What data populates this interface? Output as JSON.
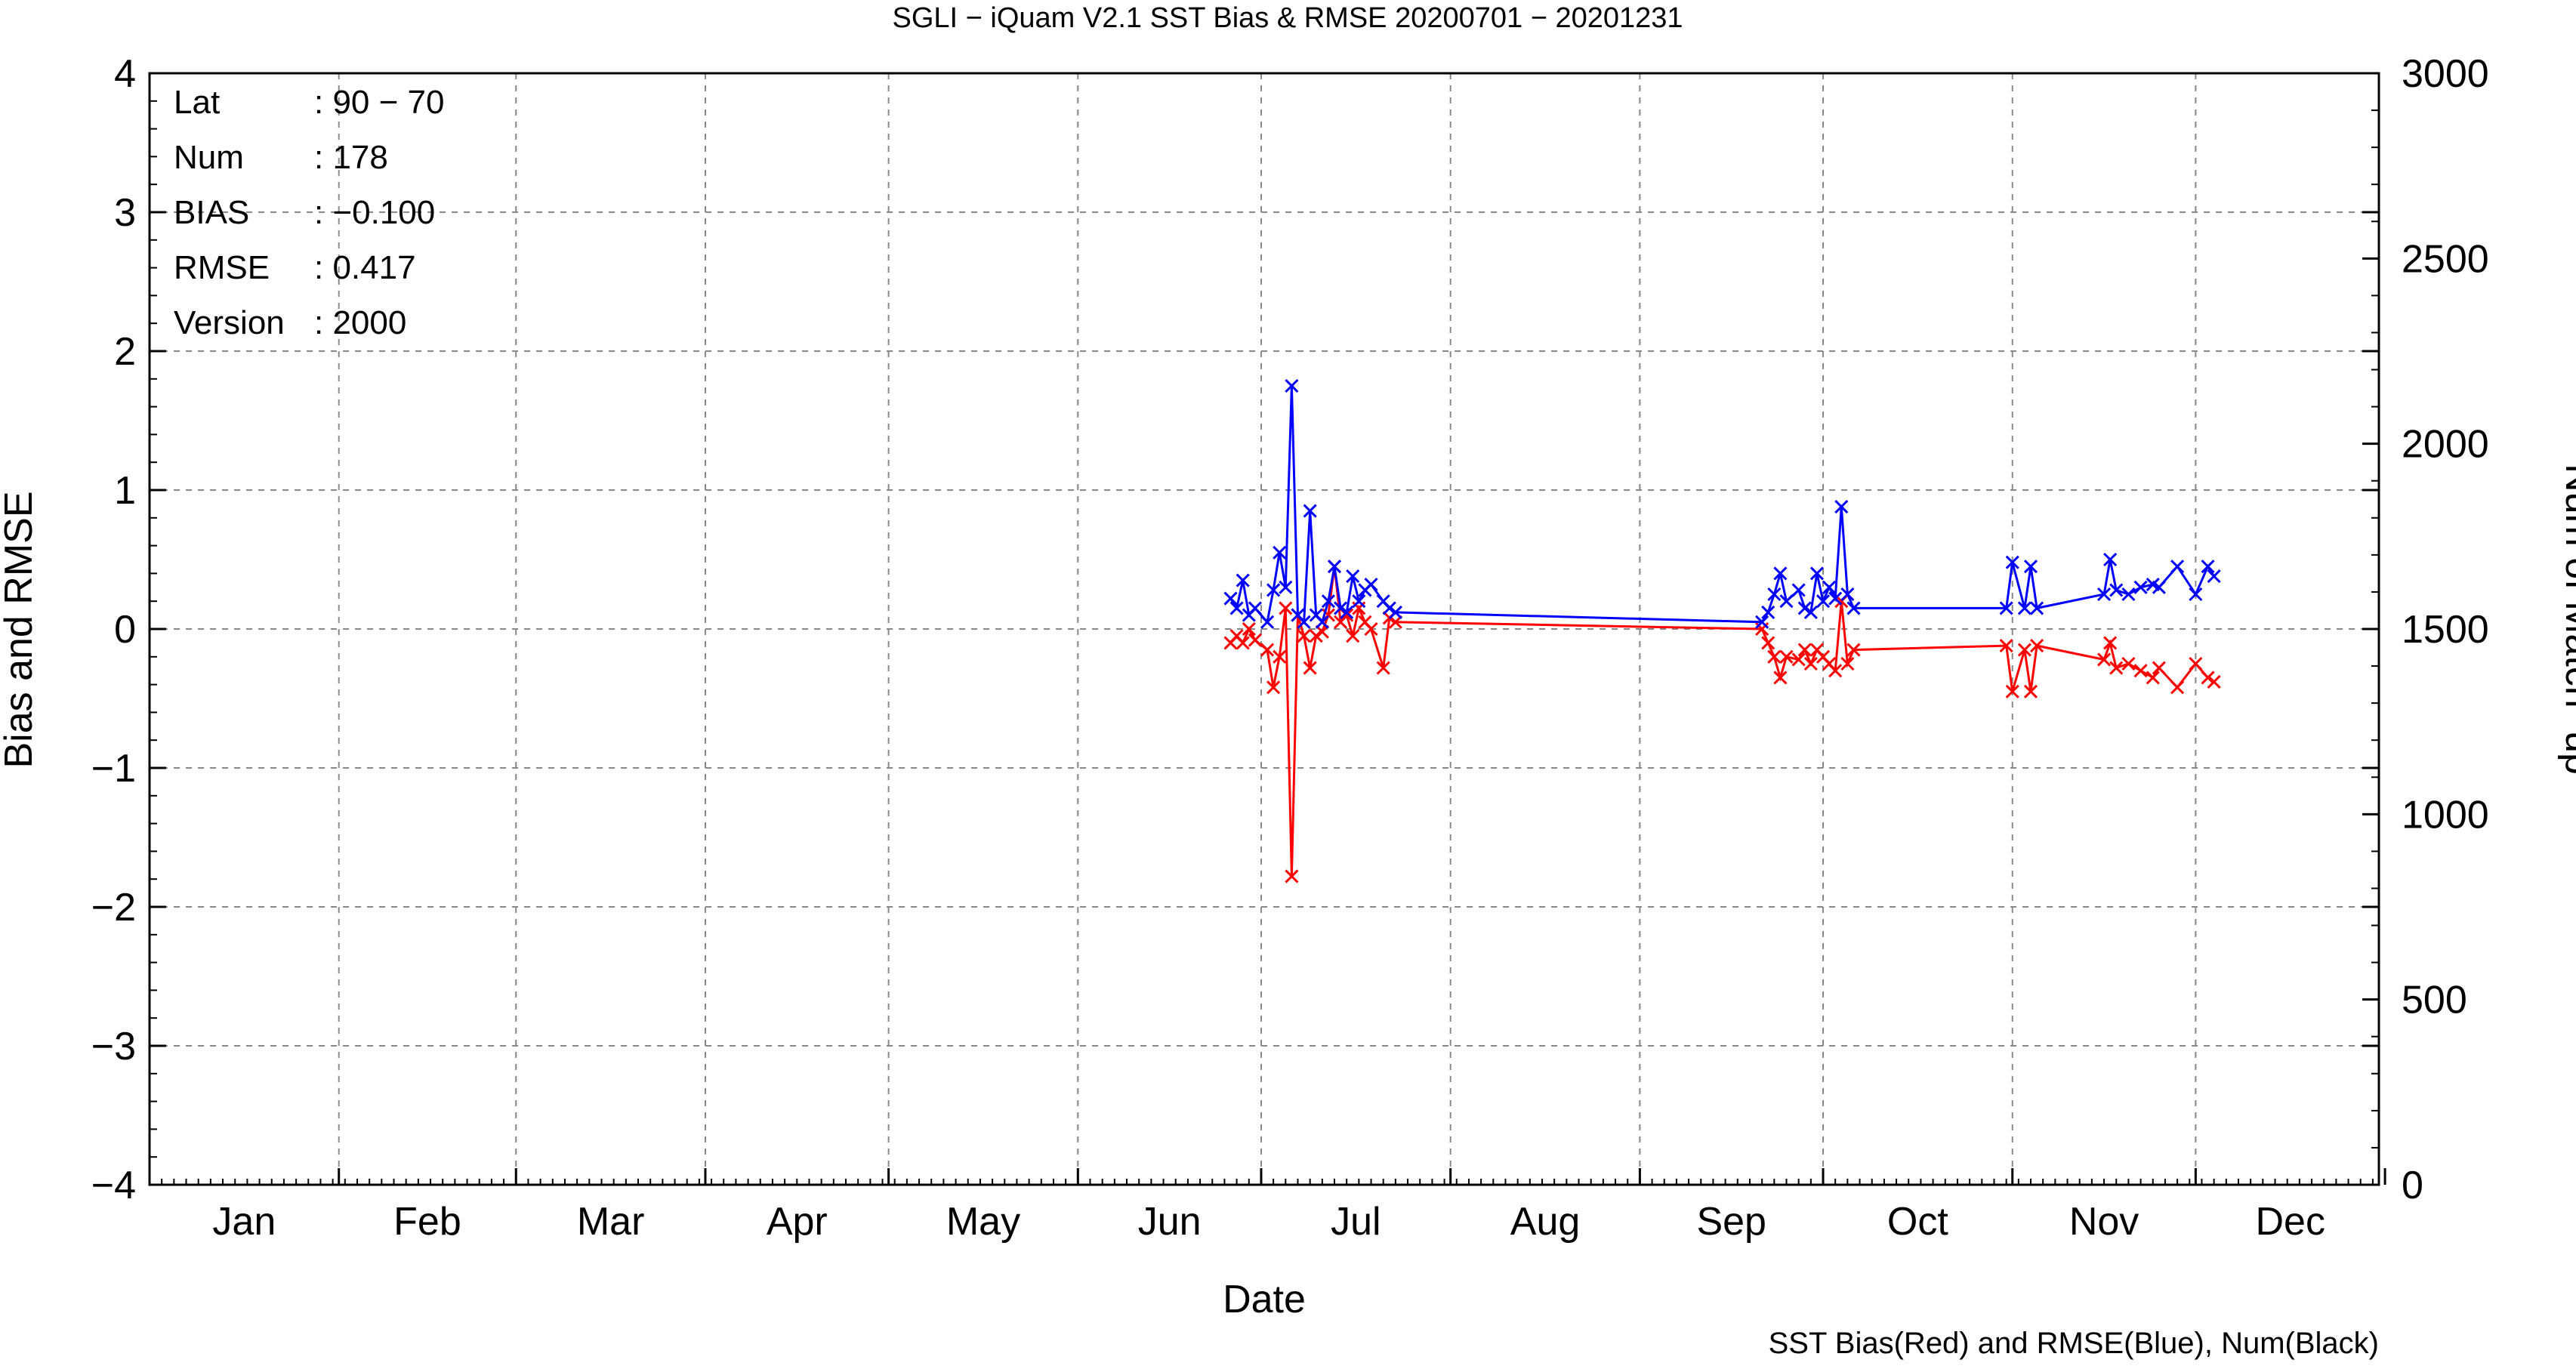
{
  "chart_data": {
    "type": "line",
    "title": "SGLI − iQuam V2.1 SST Bias & RMSE 20200701 − 20201231",
    "xlabel": "Date",
    "ylabel": "Bias and RMSE",
    "y2label": "Num of Match−up",
    "footer": "SST Bias(Red) and RMSE(Blue), Num(Black)",
    "ylim": [
      -4,
      4
    ],
    "y2lim": [
      0,
      3000
    ],
    "xlim": [
      1,
      366
    ],
    "grid": true,
    "month_labels": [
      "Jan",
      "Feb",
      "Mar",
      "Apr",
      "May",
      "Jun",
      "Jul",
      "Aug",
      "Sep",
      "Oct",
      "Nov",
      "Dec"
    ],
    "yticks": [
      "−4",
      "−3",
      "−2",
      "−1",
      "0",
      "1",
      "2",
      "3",
      "4"
    ],
    "y2ticks": [
      "0",
      "500",
      "1000",
      "1500",
      "2000",
      "2500",
      "3000"
    ],
    "info": [
      {
        "label": "Lat",
        "value": ": 90 − 70"
      },
      {
        "label": "Num",
        "value": ": 178"
      },
      {
        "label": "BIAS",
        "value": ": −0.100"
      },
      {
        "label": "RMSE",
        "value": ": 0.417"
      },
      {
        "label": "Version",
        "value": ": 2000"
      }
    ],
    "series": [
      {
        "name": "SST Bias",
        "color": "#ff0000",
        "x": [
          178,
          179,
          180,
          181,
          182,
          184,
          185,
          186,
          187,
          188,
          189,
          190,
          191,
          192,
          193,
          194,
          195,
          196,
          197,
          198,
          199,
          200,
          201,
          203,
          204,
          205,
          265,
          266,
          267,
          268,
          269,
          271,
          272,
          273,
          274,
          275,
          276,
          277,
          278,
          279,
          280,
          305,
          306,
          308,
          309,
          310,
          321,
          322,
          323,
          325,
          327,
          329,
          330,
          333,
          336,
          338,
          339
        ],
        "y": [
          -0.1,
          -0.05,
          -0.1,
          0.0,
          -0.08,
          -0.15,
          -0.42,
          -0.2,
          0.15,
          -1.78,
          0.1,
          -0.05,
          -0.28,
          -0.05,
          -0.02,
          0.1,
          0.45,
          0.05,
          0.1,
          -0.05,
          0.15,
          0.05,
          0.0,
          -0.28,
          0.08,
          0.05,
          0.0,
          -0.1,
          -0.2,
          -0.35,
          -0.2,
          -0.22,
          -0.15,
          -0.25,
          -0.15,
          -0.2,
          -0.25,
          -0.3,
          0.2,
          -0.25,
          -0.15,
          -0.12,
          -0.45,
          -0.15,
          -0.45,
          -0.12,
          -0.22,
          -0.1,
          -0.28,
          -0.25,
          -0.3,
          -0.35,
          -0.28,
          -0.42,
          -0.25,
          -0.35,
          -0.38
        ]
      },
      {
        "name": "SST RMSE",
        "color": "#0000ff",
        "x": [
          178,
          179,
          180,
          181,
          182,
          184,
          185,
          186,
          187,
          188,
          189,
          190,
          191,
          192,
          193,
          194,
          195,
          196,
          197,
          198,
          199,
          200,
          201,
          203,
          204,
          205,
          265,
          266,
          267,
          268,
          269,
          271,
          272,
          273,
          274,
          275,
          276,
          277,
          278,
          279,
          280,
          305,
          306,
          308,
          309,
          310,
          321,
          322,
          323,
          325,
          327,
          329,
          330,
          333,
          336,
          338,
          339
        ],
        "y": [
          0.22,
          0.15,
          0.35,
          0.1,
          0.15,
          0.05,
          0.28,
          0.55,
          0.3,
          1.75,
          0.1,
          0.05,
          0.85,
          0.1,
          0.05,
          0.2,
          0.45,
          0.15,
          0.12,
          0.38,
          0.2,
          0.28,
          0.32,
          0.2,
          0.15,
          0.12,
          0.05,
          0.12,
          0.25,
          0.4,
          0.2,
          0.28,
          0.15,
          0.12,
          0.4,
          0.2,
          0.3,
          0.22,
          0.88,
          0.25,
          0.15,
          0.15,
          0.48,
          0.15,
          0.45,
          0.15,
          0.25,
          0.5,
          0.28,
          0.25,
          0.3,
          0.32,
          0.3,
          0.45,
          0.25,
          0.45,
          0.38
        ]
      }
    ]
  }
}
